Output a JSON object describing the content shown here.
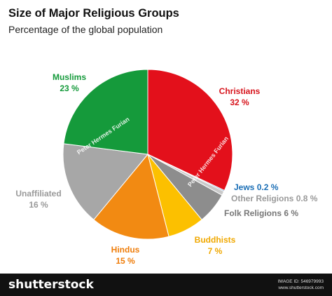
{
  "title": "Size of Major Religious Groups",
  "subtitle": "Percentage of the global population",
  "watermark": "Peter Hermes Furian",
  "footer": {
    "brand": "shutterstock",
    "image_id_label": "IMAGE ID: 546979993",
    "site": "www.shutterstock.com"
  },
  "chart_data": {
    "type": "pie",
    "title": "Size of Major Religious Groups",
    "subtitle": "Percentage of the global population",
    "start": "12 o'clock, clockwise",
    "slices": [
      {
        "name": "Christians",
        "value": 32,
        "label": "32 %",
        "color": "#e3101b",
        "text_color": "#d7141c"
      },
      {
        "name": "Jews",
        "value": 0.2,
        "label": "0.2 %",
        "color": "#1b6fb6",
        "text_color": "#1b6fb6"
      },
      {
        "name": "Other Religions",
        "value": 0.8,
        "label": "0.8 %",
        "color": "#c9c9c9",
        "text_color": "#9a9a9a"
      },
      {
        "name": "Folk Religions",
        "value": 6,
        "label": "6 %",
        "color": "#8d8d8d",
        "text_color": "#777777"
      },
      {
        "name": "Buddhists",
        "value": 7,
        "label": "7 %",
        "color": "#fcc000",
        "text_color": "#f0a800"
      },
      {
        "name": "Hindus",
        "value": 15,
        "label": "15 %",
        "color": "#f28a12",
        "text_color": "#ef7d0a"
      },
      {
        "name": "Unaffiliated",
        "value": 16,
        "label": "16 %",
        "color": "#a7a7a7",
        "text_color": "#9a9a9a"
      },
      {
        "name": "Muslims",
        "value": 23,
        "label": "23 %",
        "color": "#159a3b",
        "text_color": "#159a3b"
      }
    ]
  }
}
